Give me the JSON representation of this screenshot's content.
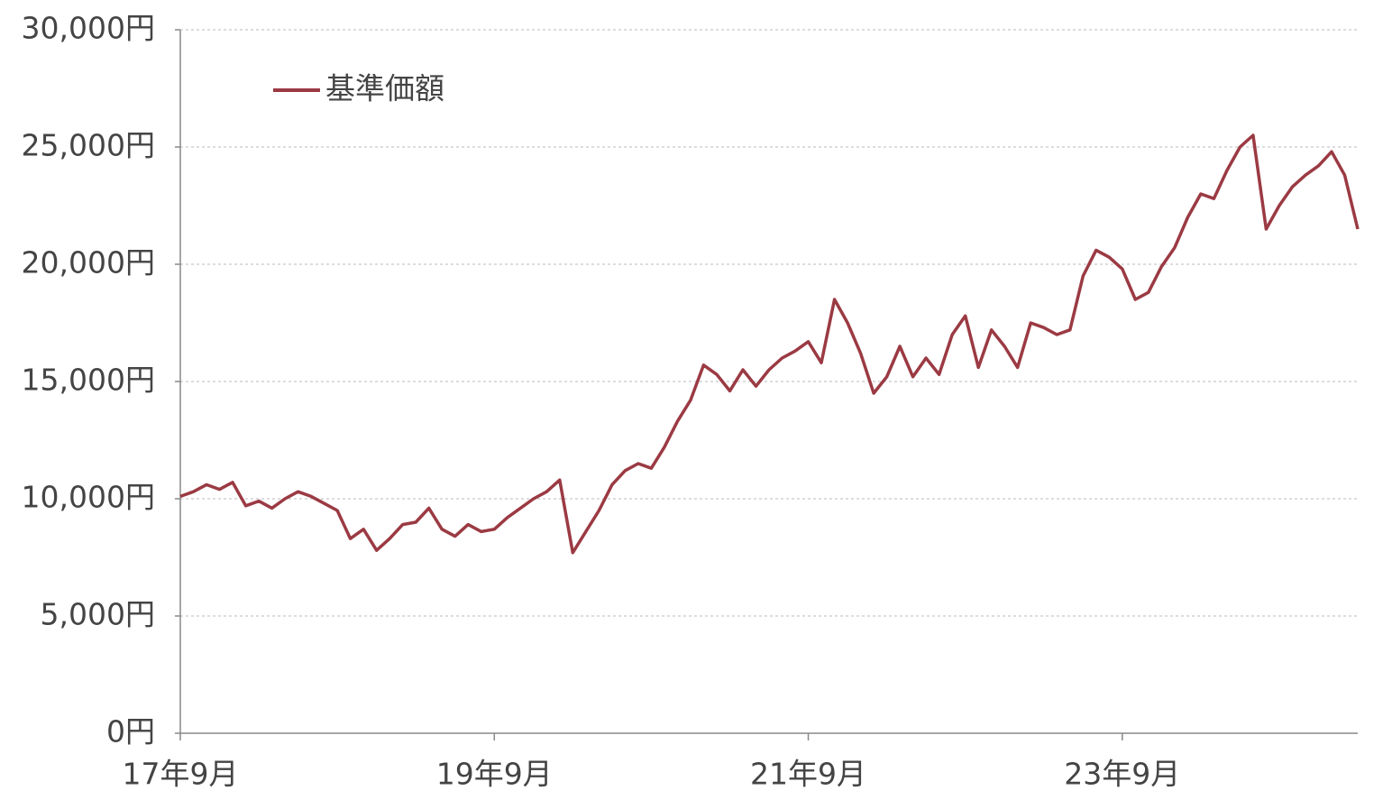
{
  "chart_data": {
    "type": "line",
    "categories": [
      "17年9月",
      null,
      null,
      null,
      null,
      null,
      null,
      null,
      null,
      null,
      null,
      null,
      null,
      null,
      null,
      null,
      null,
      null,
      null,
      null,
      null,
      null,
      null,
      null,
      "19年9月",
      null,
      null,
      null,
      null,
      null,
      null,
      null,
      null,
      null,
      null,
      null,
      null,
      null,
      null,
      null,
      null,
      null,
      null,
      null,
      null,
      null,
      null,
      null,
      "21年9月",
      null,
      null,
      null,
      null,
      null,
      null,
      null,
      null,
      null,
      null,
      null,
      null,
      null,
      null,
      null,
      null,
      null,
      null,
      null,
      null,
      null,
      null,
      null,
      "23年9月",
      null,
      null,
      null,
      null,
      null,
      null,
      null,
      null,
      null,
      null,
      null,
      null,
      null,
      null,
      null,
      null,
      null,
      null
    ],
    "series": [
      {
        "name": "基準価額",
        "color": "#9b3a43",
        "values": [
          10100,
          10300,
          10600,
          10400,
          10700,
          9700,
          9900,
          9600,
          10000,
          10300,
          10100,
          9800,
          9500,
          8300,
          8700,
          7800,
          8300,
          8900,
          9000,
          9600,
          8700,
          8400,
          8900,
          8600,
          8700,
          9200,
          9600,
          10000,
          10300,
          10800,
          7700,
          8600,
          9500,
          10600,
          11200,
          11500,
          11300,
          12200,
          13300,
          14200,
          15700,
          15300,
          14600,
          15500,
          14800,
          15500,
          16000,
          16300,
          16700,
          15800,
          18500,
          17500,
          16200,
          14500,
          15200,
          16500,
          15200,
          16000,
          15300,
          17000,
          17800,
          15600,
          17200,
          16500,
          15600,
          17500,
          17300,
          17000,
          17200,
          19500,
          20600,
          20300,
          19800,
          18500,
          18800,
          19900,
          20700,
          22000,
          23000,
          22800,
          24000,
          25000,
          25500,
          21500,
          22500,
          23300,
          23800,
          24200,
          24800,
          23800,
          21500
        ]
      }
    ],
    "ylim": [
      0,
      30000
    ],
    "yticks": [
      {
        "value": 0,
        "label": "0円"
      },
      {
        "value": 5000,
        "label": "5,000円"
      },
      {
        "value": 10000,
        "label": "10,000円"
      },
      {
        "value": 15000,
        "label": "15,000円"
      },
      {
        "value": 20000,
        "label": "20,000円"
      },
      {
        "value": 25000,
        "label": "25,000円"
      },
      {
        "value": 30000,
        "label": "30,000円"
      }
    ],
    "grid": true,
    "legend": "upper left"
  }
}
